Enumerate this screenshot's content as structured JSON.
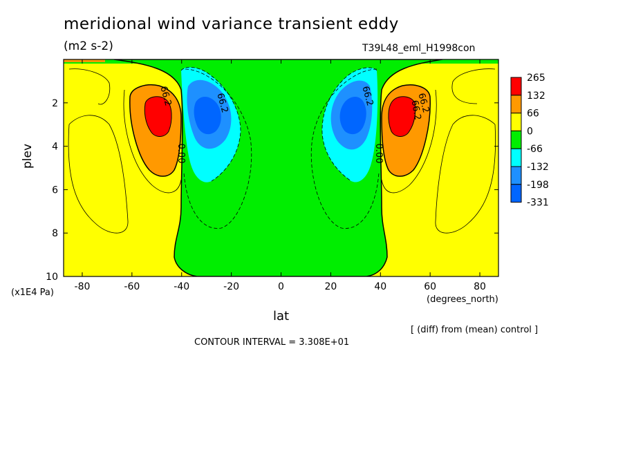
{
  "chart_data": {
    "type": "contour",
    "title": "meridional wind variance transient eddy",
    "units": "(m2 s-2)",
    "run_label": "T39L48_eml_H1998con",
    "xlabel": "lat",
    "x_units": "(degrees_north)",
    "ylabel": "plev",
    "y_units": "(x1E4 Pa)",
    "xlim": [
      -87.5,
      87.5
    ],
    "ylim": [
      0,
      10
    ],
    "y_inverted": true,
    "x_ticks": [
      "-80",
      "-60",
      "-40",
      "-20",
      "0",
      "20",
      "40",
      "60",
      "80"
    ],
    "x_tick_values": [
      -80,
      -60,
      -40,
      -20,
      0,
      20,
      40,
      60,
      80
    ],
    "y_ticks": [
      "2",
      "4",
      "6",
      "8",
      "10"
    ],
    "y_tick_values": [
      2,
      4,
      6,
      8,
      10
    ],
    "colorbar": {
      "labels": [
        "265",
        "132",
        "66",
        "0",
        "-66",
        "-132",
        "-198",
        "-331"
      ],
      "colors": [
        "#ff0000",
        "#ff9900",
        "#ffff00",
        "#00ee00",
        "#00ffff",
        "#1e90ff",
        "#0066ff"
      ]
    },
    "contour_labels": [
      "66.2",
      "66.2",
      "0.00",
      "66.2",
      "66.2",
      "66.2",
      "0.00",
      "66.2"
    ],
    "contour_interval_text": "CONTOUR INTERVAL = 3.308E+01",
    "diff_note": "[ (diff) from (mean) control ]",
    "features": [
      {
        "name": "positive-max-sh",
        "lat": -50,
        "plev": 2.6,
        "value": 265
      },
      {
        "name": "negative-min-sh",
        "lat": -30,
        "plev": 2.5,
        "value": -331
      },
      {
        "name": "negative-min-nh",
        "lat": 30,
        "plev": 2.5,
        "value": -331
      },
      {
        "name": "positive-max-nh",
        "lat": 48,
        "plev": 2.6,
        "value": 265
      }
    ]
  }
}
